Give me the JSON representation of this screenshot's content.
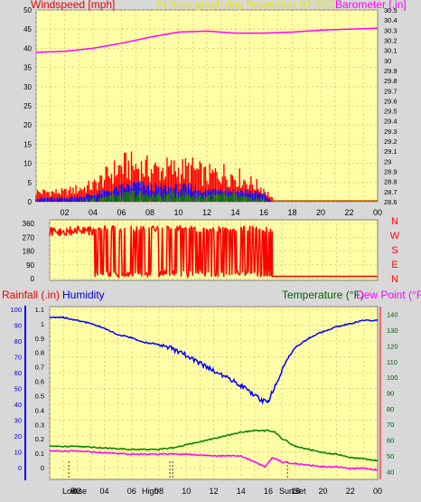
{
  "header": {
    "title": "24 hour graph day   November 02 2022",
    "windspeed_label": "Windspeed [mph]",
    "barometer_label": "Barometer [.in]"
  },
  "colors": {
    "background": "#d8d8d8",
    "plot_bg": "#ffffa8",
    "grid": "#e8b878",
    "red": "#ff0000",
    "blue": "#0000ff",
    "green": "#008000",
    "magenta": "#ff00ff",
    "title_yellow": "#e8e800",
    "dark_blue": "#0000cc",
    "dark_green": "#006000",
    "cursor": "#404040",
    "scale_red": "#e80000"
  },
  "chart_data": [
    {
      "type": "line",
      "name": "wind-barometer",
      "title": "24 hour graph day   November 02 2022",
      "ylabel_left": "Windspeed [mph]",
      "ylabel_right": "Barometer [.in]",
      "x_ticks": [
        "02",
        "04",
        "06",
        "08",
        "10",
        "12",
        "14",
        "16",
        "18",
        "20",
        "22",
        "00"
      ],
      "y_left_ticks": [
        "0",
        "5",
        "10",
        "15",
        "20",
        "25",
        "30",
        "35",
        "40",
        "45",
        "50"
      ],
      "y_left_range": [
        0,
        50
      ],
      "y_right_ticks": [
        "28.6",
        "28.7",
        "28.8",
        "28.9",
        "29",
        "29.1",
        "29.2",
        "29.3",
        "29.4",
        "29.5",
        "29.6",
        "29.7",
        "29.8",
        "29.9",
        "30",
        "30.1",
        "30.2",
        "30.3",
        "30.4",
        "30.5"
      ],
      "y_right_range": [
        28.6,
        30.5
      ],
      "series": [
        {
          "name": "Barometer",
          "color": "#ff00ff",
          "x": [
            0,
            2,
            4,
            6,
            8,
            10,
            12,
            14,
            16,
            18,
            20,
            22,
            24
          ],
          "y": [
            30.08,
            30.09,
            30.12,
            30.17,
            30.23,
            30.28,
            30.29,
            30.27,
            30.27,
            30.28,
            30.3,
            30.31,
            30.32
          ]
        }
      ],
      "wind_gust_envelope": {
        "x": [
          0,
          2,
          4,
          5,
          6,
          7,
          8,
          9,
          10,
          11,
          12,
          13,
          14,
          15,
          16,
          16.6
        ],
        "y": [
          3,
          3,
          5,
          8,
          11,
          11,
          10,
          10,
          10,
          10,
          8,
          9,
          8,
          6,
          4,
          1
        ]
      },
      "wind_avg_envelope": {
        "x": [
          0,
          2,
          4,
          5,
          6,
          7,
          8,
          9,
          10,
          11,
          12,
          13,
          14,
          15,
          16,
          16.6
        ],
        "y": [
          1,
          1,
          2,
          3,
          4,
          5,
          4,
          4,
          4,
          4,
          3,
          4,
          3,
          3,
          2,
          0
        ]
      },
      "wind_low_envelope": {
        "x": [
          0,
          2,
          4,
          5,
          6,
          7,
          8,
          9,
          10,
          11,
          12,
          13,
          14,
          15,
          16,
          16.6
        ],
        "y": [
          0,
          0,
          1,
          2,
          2,
          3,
          2,
          2,
          3,
          2,
          2,
          2,
          2,
          1,
          1,
          0
        ]
      }
    },
    {
      "type": "scatter",
      "name": "wind-direction",
      "y_ticks": [
        "360",
        "270",
        "180",
        "90",
        "0"
      ],
      "y_range": [
        0,
        360
      ],
      "compass_labels": [
        "N",
        "W",
        "S",
        "E",
        "N"
      ],
      "segments": [
        {
          "x_start": 0.0,
          "x_end": 3.2,
          "low": 250,
          "high": 340
        },
        {
          "x_start": 3.2,
          "x_end": 16.3,
          "low": 10,
          "high": 345
        },
        {
          "x_start": 16.3,
          "x_end": 24.0,
          "low": 15,
          "high": 15
        }
      ]
    },
    {
      "type": "line",
      "name": "rain-humidity-temperature",
      "rainfall_label": "Rainfall (.in)",
      "humidity_label": "Humidity",
      "temperature_label": "Temperature (°F)",
      "dewpoint_label": "Dew Point (°F)",
      "humidity_ticks": [
        "0",
        "10",
        "20",
        "30",
        "40",
        "50",
        "60",
        "70",
        "80",
        "90",
        "100"
      ],
      "rain_ticks": [
        "0",
        "0.1",
        "0.2",
        "0.3",
        "0.4",
        "0.5",
        "0.6",
        "0.7",
        "0.8",
        "0.9",
        "1",
        "1.1"
      ],
      "temp_ticks": [
        "40",
        "50",
        "60",
        "70",
        "80",
        "90",
        "100",
        "110",
        "120",
        "130",
        "140"
      ],
      "humidity_range": [
        0,
        100
      ],
      "temp_range": [
        35,
        145
      ],
      "x_ticks": [
        "02",
        "04",
        "06",
        "08",
        "10",
        "12",
        "14",
        "16",
        "18",
        "20",
        "22",
        "00"
      ],
      "series": [
        {
          "name": "Humidity",
          "color": "#0000ff",
          "x": [
            0,
            1,
            2,
            3,
            4,
            5,
            6,
            7,
            8,
            9,
            10,
            11,
            12,
            13,
            14,
            15,
            15.5,
            16,
            16.5,
            17,
            17.5,
            18,
            19,
            20,
            21,
            22,
            23,
            24
          ],
          "y": [
            95,
            95,
            93,
            91,
            88,
            84,
            82,
            79,
            78,
            75,
            71,
            66,
            61,
            57,
            52,
            46,
            42,
            42,
            52,
            62,
            70,
            76,
            82,
            86,
            89,
            91,
            93,
            93
          ]
        },
        {
          "name": "Temperature",
          "color": "#008000",
          "x": [
            0,
            2,
            4,
            6,
            8,
            9,
            10,
            11,
            12,
            13,
            14,
            15,
            16,
            16.5,
            17,
            18,
            19,
            20,
            21,
            22,
            23,
            24
          ],
          "y": [
            56,
            56,
            55,
            54,
            54,
            55,
            57,
            59,
            61,
            63,
            65,
            66,
            66,
            65,
            61,
            56,
            54,
            52,
            51,
            49,
            48,
            47
          ]
        },
        {
          "name": "Dew Point",
          "color": "#ff00ff",
          "x": [
            0,
            2,
            4,
            6,
            8,
            10,
            12,
            14,
            15,
            15.8,
            16.3,
            17,
            18,
            19,
            20,
            21,
            22,
            23,
            24
          ],
          "y": [
            53,
            53,
            52,
            51,
            51,
            51,
            50,
            50,
            46,
            43,
            49,
            46,
            45,
            44,
            43,
            43,
            42,
            42,
            41
          ]
        }
      ],
      "event_labels": [
        "Low",
        "Rise",
        "High",
        "Set",
        "Sun"
      ]
    }
  ]
}
